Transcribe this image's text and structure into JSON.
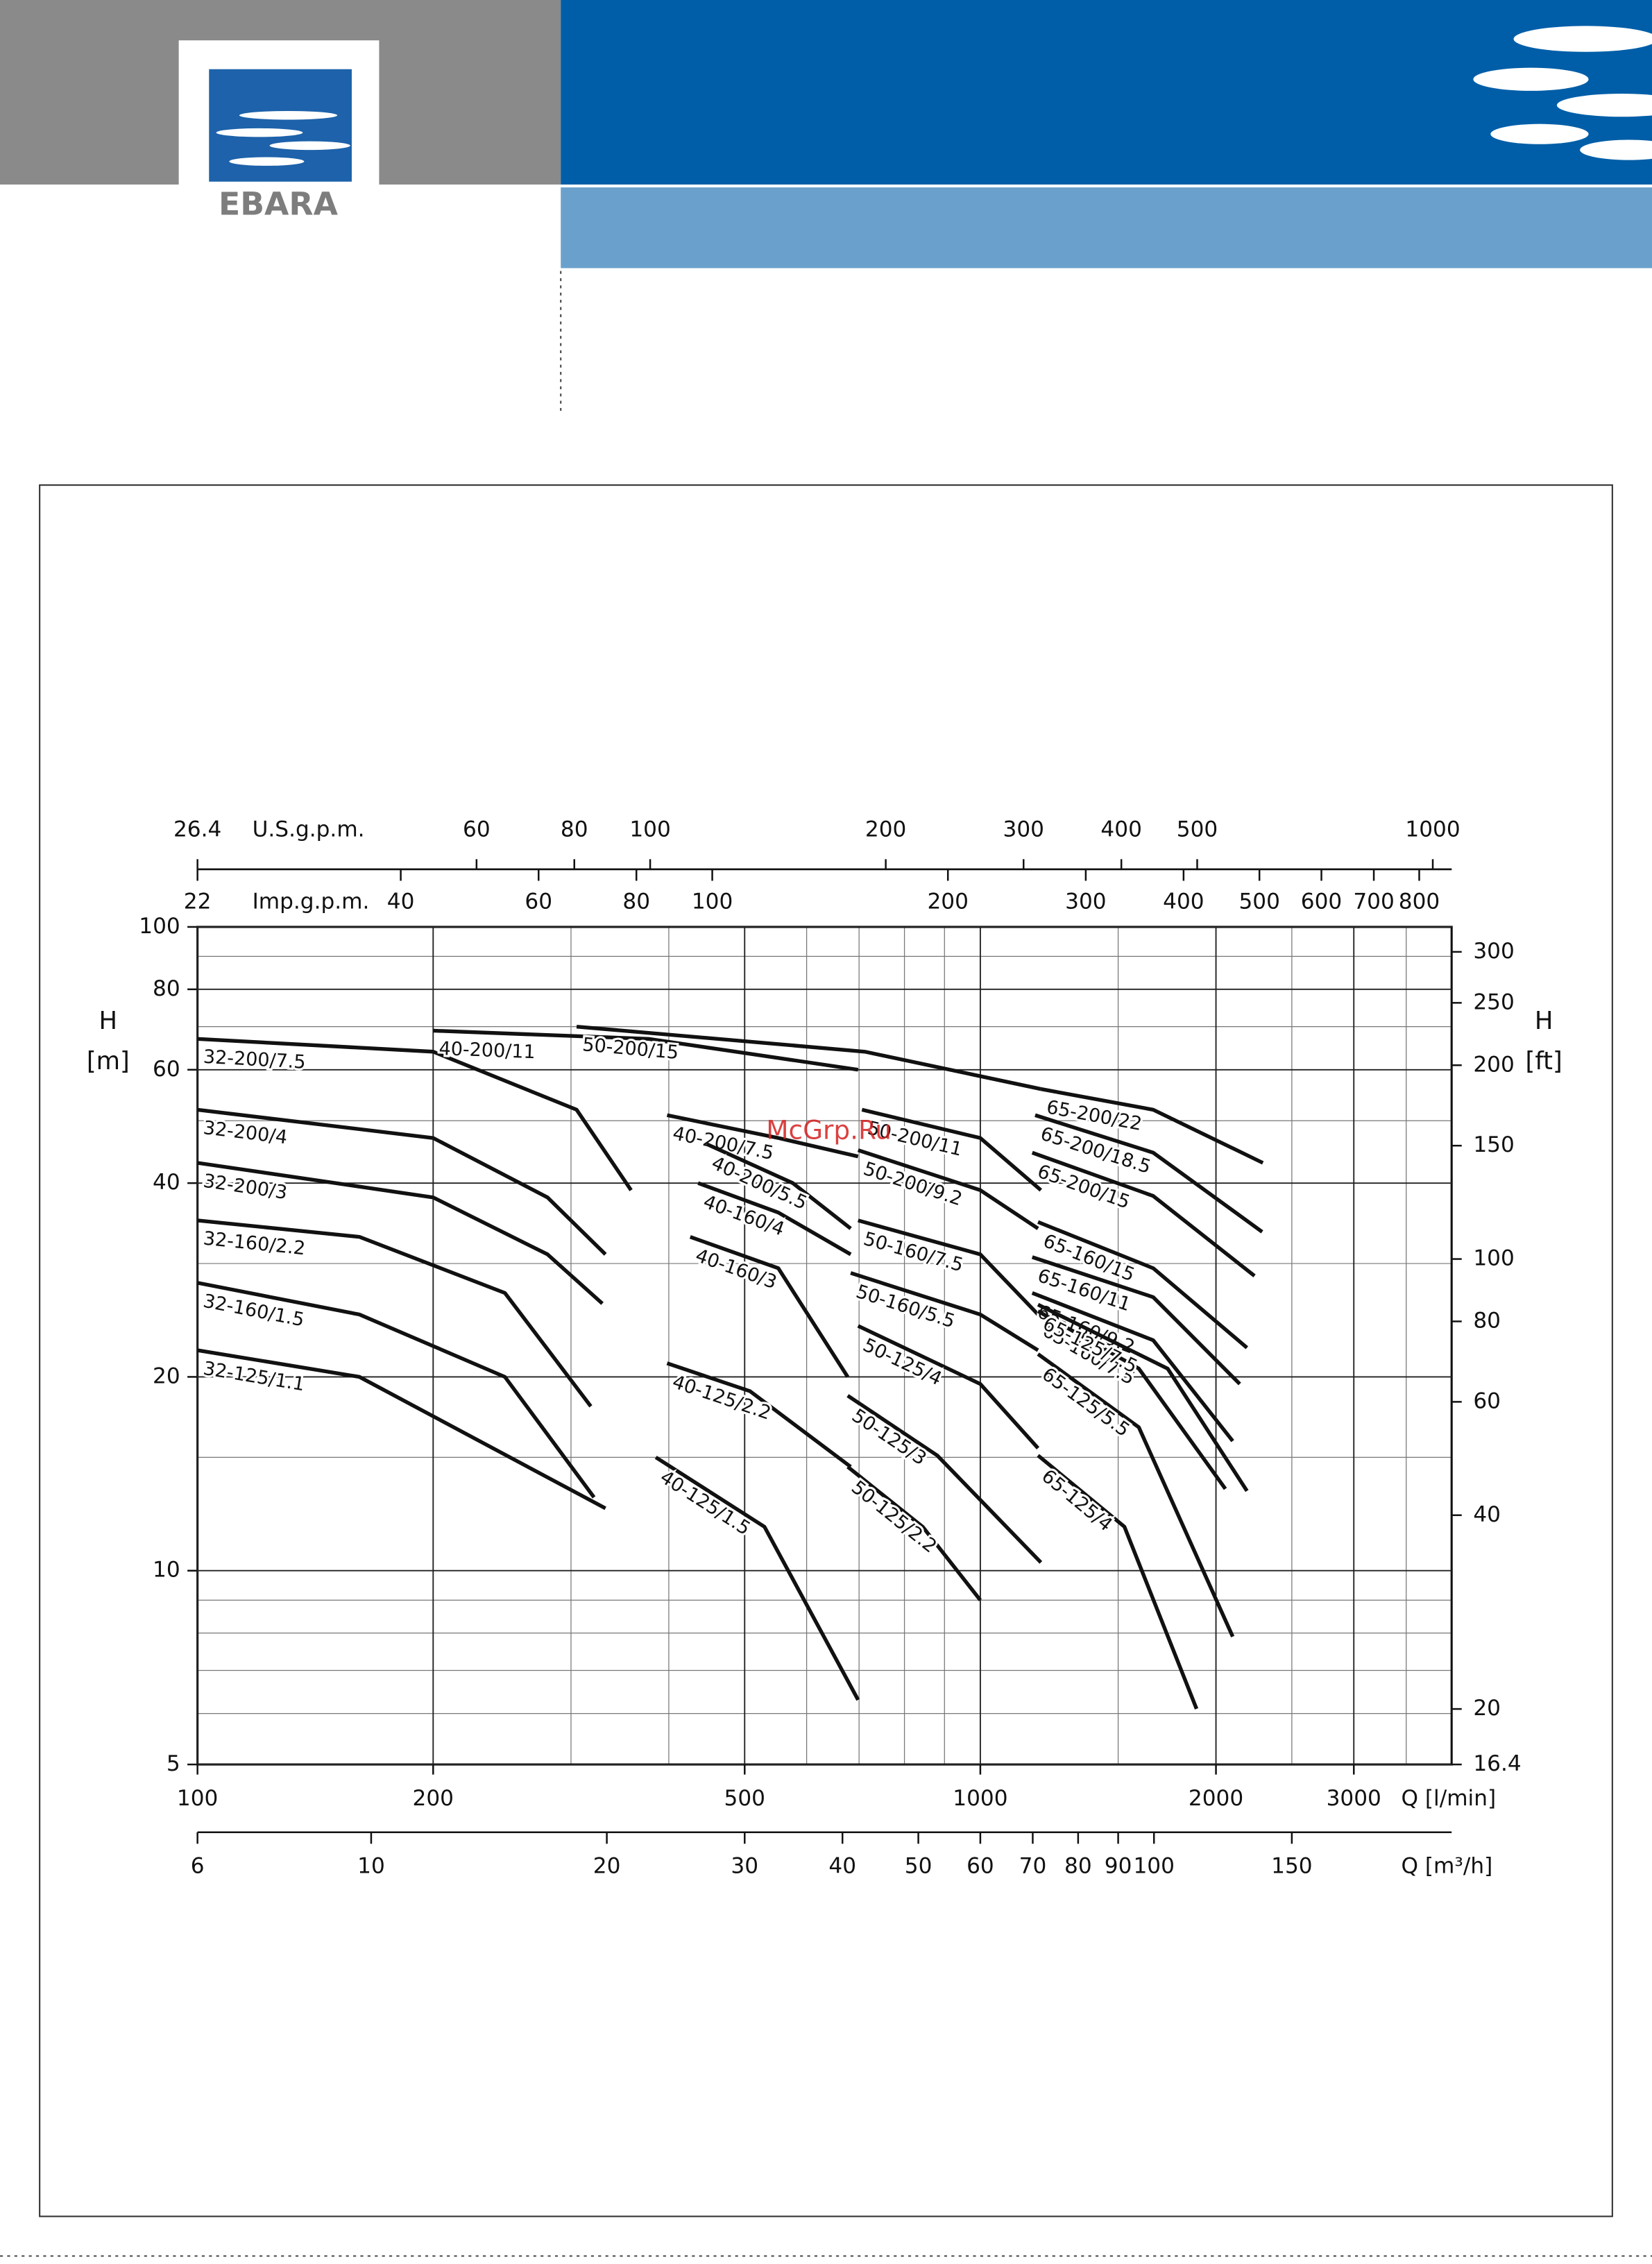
{
  "logo_text": "EBARA",
  "watermark": "McGrp.Ru",
  "chart_data": {
    "type": "line",
    "log_x": true,
    "log_y": true,
    "grid": true,
    "color": "#111111",
    "x_label": "Q [l/min]",
    "y_label": "H",
    "y_unit": "[m]",
    "y2_label": "H",
    "y2_unit": "[ft]",
    "xlim": [
      100,
      4000
    ],
    "xticks": [
      100,
      200,
      500,
      1000,
      2000,
      3000
    ],
    "xgrid": [
      200,
      300,
      400,
      500,
      600,
      700,
      800,
      900,
      1000,
      1500,
      2000,
      2500,
      3000,
      3500
    ],
    "ylim": [
      5,
      100
    ],
    "yticks": [
      5,
      10,
      20,
      40,
      60,
      80,
      100
    ],
    "ygrid": [
      6,
      7,
      8,
      9,
      10,
      15,
      20,
      30,
      40,
      50,
      60,
      70,
      80,
      90
    ],
    "y2lim": [
      16.4,
      328
    ],
    "y2ticks": [
      16.4,
      20,
      40,
      60,
      80,
      100,
      150,
      200,
      250,
      300
    ],
    "top_axis_us": {
      "label": "U.S.g.p.m.",
      "lim": [
        26.4,
        1057
      ],
      "ticks": [
        26.4,
        60,
        80,
        100,
        200,
        300,
        400,
        500,
        1000
      ]
    },
    "top_axis_imp": {
      "label": "Imp.g.p.m.",
      "lim": [
        22,
        880
      ],
      "ticks": [
        22,
        40,
        60,
        80,
        100,
        200,
        300,
        400,
        500,
        600,
        700,
        800
      ]
    },
    "bottom_axis_m3h": {
      "label": "Q [m³/h]",
      "lim": [
        6,
        240
      ],
      "ticks": [
        6,
        10,
        20,
        30,
        40,
        50,
        60,
        70,
        80,
        90,
        100,
        150
      ]
    },
    "series": [
      {
        "name": "32-200/7.5",
        "x": [
          100,
          200,
          305,
          358
        ],
        "values": [
          67,
          64,
          52,
          39
        ]
      },
      {
        "name": "32-200/4",
        "x": [
          100,
          200,
          280,
          332
        ],
        "values": [
          52,
          47,
          38,
          31
        ]
      },
      {
        "name": "32-200/3",
        "x": [
          100,
          200,
          280,
          329
        ],
        "values": [
          43,
          38,
          31,
          26
        ]
      },
      {
        "name": "32-160/2.2",
        "x": [
          100,
          161,
          247,
          318
        ],
        "values": [
          35,
          33,
          27,
          18
        ]
      },
      {
        "name": "32-160/1.5",
        "x": [
          100,
          161,
          247,
          321
        ],
        "values": [
          28,
          25,
          20,
          13
        ]
      },
      {
        "name": "32-125/1.1",
        "x": [
          100,
          161,
          227,
          332
        ],
        "values": [
          22,
          20,
          16,
          12.5
        ]
      },
      {
        "name": "40-200/11",
        "x": [
          200,
          377,
          698
        ],
        "values": [
          69,
          67,
          60
        ]
      },
      {
        "name": "40-200/7.5",
        "x": [
          398,
          552,
          698
        ],
        "values": [
          51,
          47,
          44
        ]
      },
      {
        "name": "40-200/5.5",
        "x": [
          447,
          576,
          683
        ],
        "values": [
          46,
          40,
          34
        ]
      },
      {
        "name": "40-160/4",
        "x": [
          436,
          552,
          683
        ],
        "values": [
          40,
          36,
          31
        ]
      },
      {
        "name": "40-160/3",
        "x": [
          426,
          552,
          677
        ],
        "values": [
          33,
          29.5,
          20
        ]
      },
      {
        "name": "40-125/2.2",
        "x": [
          398,
          508,
          683
        ],
        "values": [
          21,
          19,
          14.5
        ]
      },
      {
        "name": "40-125/1.5",
        "x": [
          385,
          530,
          698
        ],
        "values": [
          15,
          11.7,
          6.3
        ]
      },
      {
        "name": "50-200/15",
        "x": [
          305,
          712,
          1195
        ],
        "values": [
          70,
          64,
          56
        ]
      },
      {
        "name": "50-200/11",
        "x": [
          706,
          1000,
          1195
        ],
        "values": [
          52,
          47,
          39
        ]
      },
      {
        "name": "50-200/9.2",
        "x": [
          698,
          1000,
          1185
        ],
        "values": [
          45,
          39,
          34
        ]
      },
      {
        "name": "50-160/7.5",
        "x": [
          698,
          1000,
          1185
        ],
        "values": [
          35,
          31,
          25
        ]
      },
      {
        "name": "50-160/5.5",
        "x": [
          683,
          1000,
          1185
        ],
        "values": [
          29,
          25,
          22
        ]
      },
      {
        "name": "50-125/4",
        "x": [
          698,
          1000,
          1185
        ],
        "values": [
          24,
          19.5,
          15.5
        ]
      },
      {
        "name": "50-125/3",
        "x": [
          677,
          881,
          1195
        ],
        "values": [
          18.7,
          15.1,
          10.3
        ]
      },
      {
        "name": "50-125/2.2",
        "x": [
          677,
          844,
          1000
        ],
        "values": [
          14.5,
          11.7,
          9
        ]
      },
      {
        "name": "65-200/22",
        "x": [
          1195,
          1663,
          2296
        ],
        "values": [
          56,
          52,
          43
        ]
      },
      {
        "name": "65-200/18.5",
        "x": [
          1175,
          1663,
          2291
        ],
        "values": [
          51,
          44.6,
          33.6
        ]
      },
      {
        "name": "65-200/15",
        "x": [
          1165,
          1663,
          2240
        ],
        "values": [
          44.6,
          38.2,
          28.7
        ]
      },
      {
        "name": "65-160/15",
        "x": [
          1185,
          1663,
          2191
        ],
        "values": [
          34.8,
          29.5,
          22.2
        ]
      },
      {
        "name": "65-160/11",
        "x": [
          1165,
          1663,
          2145
        ],
        "values": [
          30.7,
          26.6,
          19.5
        ]
      },
      {
        "name": "65-160/9.2",
        "x": [
          1165,
          1663,
          2101
        ],
        "values": [
          27,
          22.8,
          15.9
        ]
      },
      {
        "name": "65-160/7.5",
        "x": [
          1185,
          1594,
          2056
        ],
        "values": [
          25.3,
          20.6,
          13.4
        ]
      },
      {
        "name": "65-125/7.5",
        "x": [
          1185,
          1735,
          2191
        ],
        "values": [
          25.9,
          20.6,
          13.3
        ]
      },
      {
        "name": "65-125/5.5",
        "x": [
          1185,
          1594,
          2101
        ],
        "values": [
          21.7,
          16.7,
          7.9
        ]
      },
      {
        "name": "65-125/4",
        "x": [
          1185,
          1528,
          1889
        ],
        "values": [
          15.1,
          11.7,
          6.1
        ]
      }
    ]
  }
}
